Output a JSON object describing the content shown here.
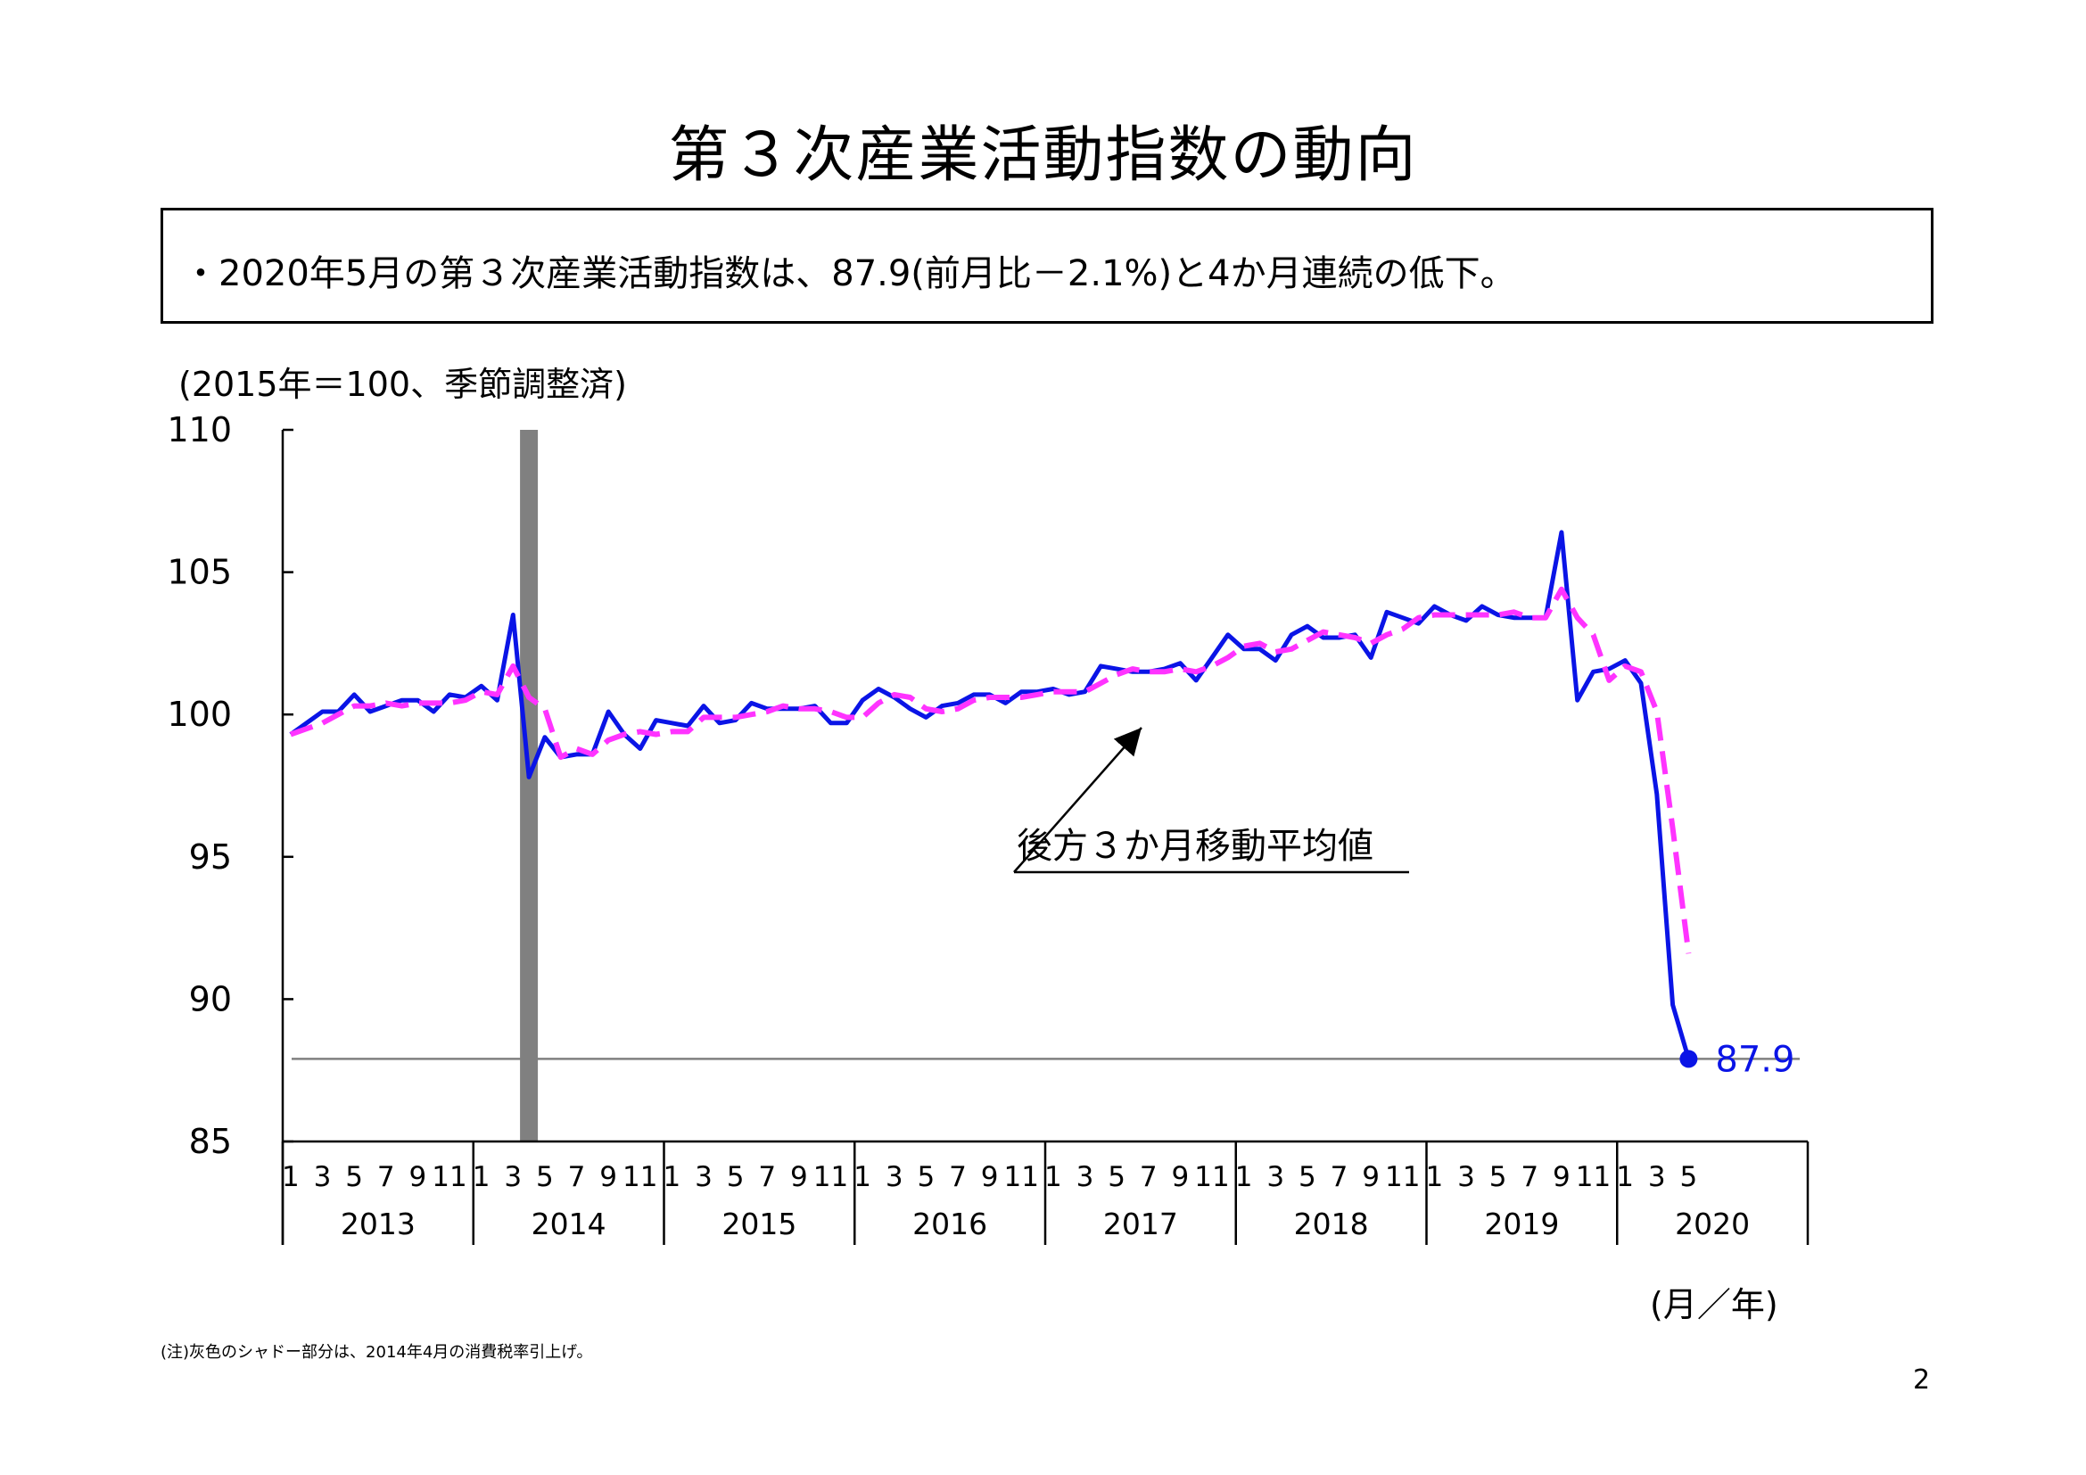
{
  "title": "第３次産業活動指数の動向",
  "summary": "・2020年5月の第３次産業活動指数は、87.9(前月比－2.1%)と4か月連続の低下。",
  "unit_label": "(2015年＝100、季節調整済)",
  "x_unit_label": "(月／年)",
  "note": "(注)灰色のシャドー部分は、2014年4月の消費税率引上げ。",
  "page_number": "2",
  "colors": {
    "index": "#0a14e6",
    "moving_average": "#ff33ff",
    "shade": "#808080",
    "reference": "#808080"
  },
  "chart_data": {
    "type": "line",
    "y_ticks": [
      "110",
      "105",
      "100",
      "95",
      "90",
      "85"
    ],
    "ylim": [
      85,
      110
    ],
    "years": [
      "2013",
      "2014",
      "2015",
      "2016",
      "2017",
      "2018",
      "2019",
      "2020"
    ],
    "month_labels": [
      "1",
      "3",
      "5",
      "7",
      "9",
      "11"
    ],
    "month_labels_2020": [
      "1",
      "3",
      "5"
    ],
    "shade_month": "2014-04",
    "reference_value": 87.9,
    "last_value_label": "87.9",
    "annotation": "後方３か月移動平均値",
    "series": [
      {
        "key": "index",
        "values": [
          99.3,
          99.7,
          100.1,
          100.1,
          100.7,
          100.1,
          100.3,
          100.5,
          100.5,
          100.1,
          100.7,
          100.6,
          101.0,
          100.5,
          103.5,
          97.8,
          99.2,
          98.5,
          98.6,
          98.6,
          100.1,
          99.3,
          98.8,
          99.8,
          99.7,
          99.6,
          100.3,
          99.7,
          99.8,
          100.4,
          100.2,
          100.2,
          100.2,
          100.3,
          99.7,
          99.7,
          100.5,
          100.9,
          100.6,
          100.2,
          99.9,
          100.3,
          100.4,
          100.7,
          100.7,
          100.4,
          100.8,
          100.8,
          100.9,
          100.7,
          100.8,
          101.7,
          101.6,
          101.5,
          101.5,
          101.6,
          101.8,
          101.2,
          102.0,
          102.8,
          102.3,
          102.3,
          101.9,
          102.8,
          103.1,
          102.7,
          102.7,
          102.8,
          102.0,
          103.6,
          103.4,
          103.2,
          103.8,
          103.5,
          103.3,
          103.8,
          103.5,
          103.4,
          103.4,
          103.4,
          106.4,
          100.5,
          101.5,
          101.6,
          101.9,
          101.1,
          97.2,
          89.8,
          87.9
        ]
      },
      {
        "key": "moving_average",
        "values": [
          99.3,
          99.5,
          99.7,
          100.0,
          100.3,
          100.3,
          100.4,
          100.3,
          100.4,
          100.4,
          100.4,
          100.5,
          100.8,
          100.7,
          101.7,
          100.6,
          100.2,
          98.5,
          98.8,
          98.6,
          99.1,
          99.3,
          99.4,
          99.3,
          99.4,
          99.4,
          99.9,
          99.9,
          99.9,
          100.0,
          100.1,
          100.3,
          100.2,
          100.2,
          100.1,
          99.9,
          99.9,
          100.4,
          100.7,
          100.6,
          100.2,
          100.1,
          100.2,
          100.5,
          100.6,
          100.6,
          100.6,
          100.7,
          100.8,
          100.8,
          100.8,
          101.1,
          101.4,
          101.6,
          101.5,
          101.5,
          101.6,
          101.5,
          101.7,
          102.0,
          102.4,
          102.5,
          102.2,
          102.3,
          102.6,
          102.9,
          102.8,
          102.7,
          102.5,
          102.8,
          103.0,
          103.4,
          103.5,
          103.5,
          103.5,
          103.5,
          103.5,
          103.6,
          103.4,
          103.4,
          104.4,
          103.4,
          102.8,
          101.2,
          101.7,
          101.5,
          100.1,
          96.0,
          91.6
        ]
      }
    ]
  }
}
